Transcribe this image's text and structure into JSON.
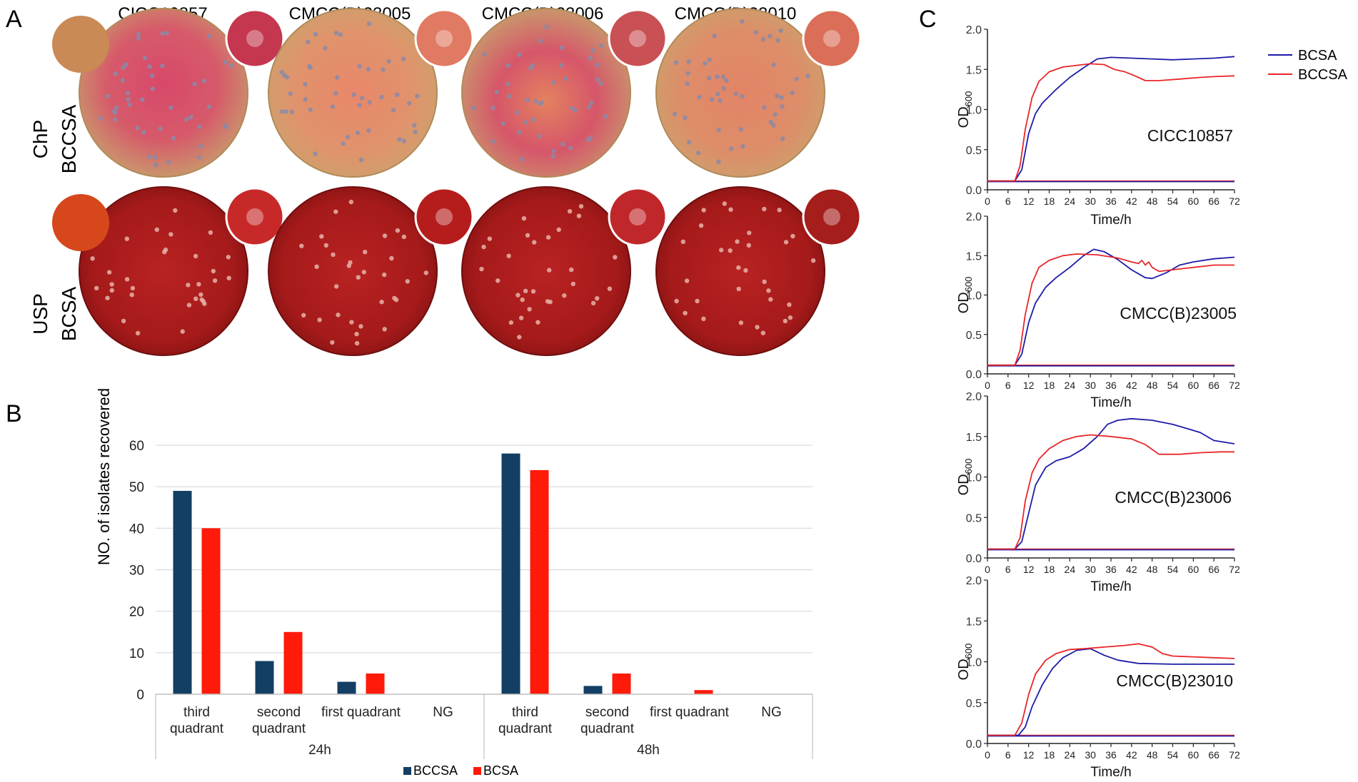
{
  "panels": {
    "a": "A",
    "b": "B",
    "c": "C"
  },
  "panel_a": {
    "strains": [
      "CICC10857",
      "CMCC(B)23005",
      "CMCC(B)23006",
      "CMCC(B)23010"
    ],
    "rows": [
      {
        "line1": "ChP",
        "line2": "BCCSA",
        "medium": "chp"
      },
      {
        "line1": "USP",
        "line2": "BCSA",
        "medium": "usp"
      }
    ],
    "colors": {
      "chp_inset_blank": "#c98a55",
      "chp_insets": [
        "#c4374f",
        "#e07a62",
        "#c95055",
        "#db6e58"
      ],
      "chp_pink": "#d8486a",
      "chp_orange": "#e0876a",
      "chp_tan": "#c7a26d",
      "usp_inset_blank": "#d6471c",
      "usp_insets": [
        "#c72929",
        "#b51d1d",
        "#c0272a",
        "#a51e1c"
      ],
      "usp_red": "#b41d1d",
      "usp_dark": "#7a1010",
      "colony_chp": "#8a8aa8",
      "colony_usp": "#e6b3a8"
    }
  },
  "panel_b": {
    "chart_data": {
      "type": "bar",
      "ylabel": "NO. of isolates recovered",
      "ylim": [
        0,
        60
      ],
      "yticks": [
        0,
        10,
        20,
        30,
        40,
        50,
        60
      ],
      "groups": [
        "24h",
        "48h"
      ],
      "categories": [
        [
          "third",
          "quadrant"
        ],
        [
          "second",
          "quadrant"
        ],
        [
          "first quadrant"
        ],
        [
          "NG"
        ],
        [
          "third",
          "quadrant"
        ],
        [
          "second",
          "quadrant"
        ],
        [
          "first quadrant"
        ],
        [
          "NG"
        ]
      ],
      "series": [
        {
          "name": "BCCSA",
          "color": "#123f63",
          "values": [
            49,
            8,
            3,
            0,
            58,
            2,
            0,
            0
          ]
        },
        {
          "name": "BCSA",
          "color": "#ff1a0a",
          "values": [
            40,
            15,
            5,
            0,
            54,
            5,
            1,
            0
          ]
        }
      ],
      "legend": "bottom"
    }
  },
  "panel_c": {
    "chart_data": {
      "type": "line",
      "xlabel": "Time/h",
      "ylabel_main": "OD",
      "ylabel_sub": "600",
      "xlim": [
        0,
        72
      ],
      "ylim": [
        0,
        2.0
      ],
      "xticks": [
        0,
        6,
        12,
        18,
        24,
        30,
        36,
        42,
        48,
        54,
        60,
        66,
        72
      ],
      "yticks": [
        "0.0",
        "0.5",
        "1.0",
        "1.5",
        "2.0"
      ],
      "legend": [
        {
          "name": "BCSA",
          "color": "#1c1ca8"
        },
        {
          "name": "BCCSA",
          "color": "#e8262a"
        }
      ],
      "subplots": [
        {
          "strain": "CICC10857",
          "BCSA": [
            [
              0,
              0.11
            ],
            [
              8,
              0.11
            ],
            [
              10,
              0.25
            ],
            [
              12,
              0.7
            ],
            [
              14,
              0.95
            ],
            [
              16,
              1.08
            ],
            [
              20,
              1.25
            ],
            [
              24,
              1.4
            ],
            [
              28,
              1.52
            ],
            [
              32,
              1.63
            ],
            [
              36,
              1.65
            ],
            [
              42,
              1.64
            ],
            [
              48,
              1.63
            ],
            [
              54,
              1.62
            ],
            [
              60,
              1.63
            ],
            [
              66,
              1.64
            ],
            [
              72,
              1.66
            ]
          ],
          "BCCSA": [
            [
              0,
              0.11
            ],
            [
              8,
              0.11
            ],
            [
              9.5,
              0.3
            ],
            [
              11,
              0.75
            ],
            [
              13,
              1.15
            ],
            [
              15,
              1.35
            ],
            [
              18,
              1.47
            ],
            [
              22,
              1.53
            ],
            [
              26,
              1.55
            ],
            [
              30,
              1.57
            ],
            [
              34,
              1.56
            ],
            [
              37,
              1.5
            ],
            [
              40,
              1.47
            ],
            [
              43,
              1.42
            ],
            [
              46,
              1.36
            ],
            [
              50,
              1.36
            ],
            [
              56,
              1.38
            ],
            [
              62,
              1.4
            ],
            [
              66,
              1.41
            ],
            [
              72,
              1.42
            ]
          ],
          "baseline": 0.11
        },
        {
          "strain": "CMCC(B)23005",
          "BCSA": [
            [
              0,
              0.11
            ],
            [
              8,
              0.11
            ],
            [
              10,
              0.25
            ],
            [
              12,
              0.65
            ],
            [
              14,
              0.9
            ],
            [
              17,
              1.1
            ],
            [
              20,
              1.22
            ],
            [
              24,
              1.35
            ],
            [
              28,
              1.5
            ],
            [
              31,
              1.58
            ],
            [
              34,
              1.55
            ],
            [
              38,
              1.45
            ],
            [
              42,
              1.32
            ],
            [
              46,
              1.22
            ],
            [
              48,
              1.21
            ],
            [
              52,
              1.28
            ],
            [
              56,
              1.38
            ],
            [
              60,
              1.42
            ],
            [
              66,
              1.46
            ],
            [
              72,
              1.48
            ]
          ],
          "BCCSA": [
            [
              0,
              0.11
            ],
            [
              8,
              0.11
            ],
            [
              9.5,
              0.3
            ],
            [
              11,
              0.75
            ],
            [
              13,
              1.15
            ],
            [
              15,
              1.35
            ],
            [
              18,
              1.44
            ],
            [
              22,
              1.5
            ],
            [
              26,
              1.52
            ],
            [
              32,
              1.51
            ],
            [
              38,
              1.47
            ],
            [
              42,
              1.42
            ],
            [
              44,
              1.4
            ],
            [
              45,
              1.44
            ],
            [
              46,
              1.38
            ],
            [
              47,
              1.42
            ],
            [
              48,
              1.35
            ],
            [
              50,
              1.3
            ],
            [
              54,
              1.32
            ],
            [
              60,
              1.35
            ],
            [
              66,
              1.38
            ],
            [
              72,
              1.38
            ]
          ],
          "baseline": 0.11
        },
        {
          "strain": "CMCC(B)23006",
          "BCSA": [
            [
              0,
              0.11
            ],
            [
              8,
              0.11
            ],
            [
              10,
              0.2
            ],
            [
              12,
              0.55
            ],
            [
              14,
              0.9
            ],
            [
              17,
              1.12
            ],
            [
              20,
              1.2
            ],
            [
              24,
              1.25
            ],
            [
              28,
              1.35
            ],
            [
              32,
              1.5
            ],
            [
              35,
              1.65
            ],
            [
              38,
              1.7
            ],
            [
              42,
              1.72
            ],
            [
              48,
              1.7
            ],
            [
              54,
              1.65
            ],
            [
              58,
              1.6
            ],
            [
              62,
              1.55
            ],
            [
              66,
              1.45
            ],
            [
              72,
              1.41
            ]
          ],
          "BCCSA": [
            [
              0,
              0.11
            ],
            [
              8,
              0.11
            ],
            [
              9.5,
              0.25
            ],
            [
              11,
              0.7
            ],
            [
              13,
              1.05
            ],
            [
              15,
              1.22
            ],
            [
              18,
              1.35
            ],
            [
              22,
              1.45
            ],
            [
              26,
              1.5
            ],
            [
              30,
              1.52
            ],
            [
              36,
              1.5
            ],
            [
              42,
              1.47
            ],
            [
              46,
              1.4
            ],
            [
              50,
              1.28
            ],
            [
              56,
              1.28
            ],
            [
              62,
              1.3
            ],
            [
              68,
              1.31
            ],
            [
              72,
              1.31
            ]
          ],
          "baseline": 0.11
        },
        {
          "strain": "CMCC(B)23010",
          "BCSA": [
            [
              0,
              0.1
            ],
            [
              9,
              0.1
            ],
            [
              11,
              0.2
            ],
            [
              13,
              0.45
            ],
            [
              16,
              0.72
            ],
            [
              19,
              0.92
            ],
            [
              22,
              1.05
            ],
            [
              26,
              1.14
            ],
            [
              30,
              1.16
            ],
            [
              34,
              1.08
            ],
            [
              38,
              1.02
            ],
            [
              44,
              0.98
            ],
            [
              54,
              0.97
            ],
            [
              62,
              0.97
            ],
            [
              72,
              0.97
            ]
          ],
          "BCCSA": [
            [
              0,
              0.1
            ],
            [
              8,
              0.1
            ],
            [
              10,
              0.25
            ],
            [
              12,
              0.6
            ],
            [
              14,
              0.85
            ],
            [
              17,
              1.02
            ],
            [
              20,
              1.1
            ],
            [
              24,
              1.15
            ],
            [
              28,
              1.16
            ],
            [
              34,
              1.18
            ],
            [
              40,
              1.2
            ],
            [
              44,
              1.22
            ],
            [
              48,
              1.18
            ],
            [
              51,
              1.1
            ],
            [
              54,
              1.07
            ],
            [
              60,
              1.06
            ],
            [
              66,
              1.05
            ],
            [
              72,
              1.04
            ]
          ],
          "baseline": 0.1
        }
      ]
    }
  }
}
